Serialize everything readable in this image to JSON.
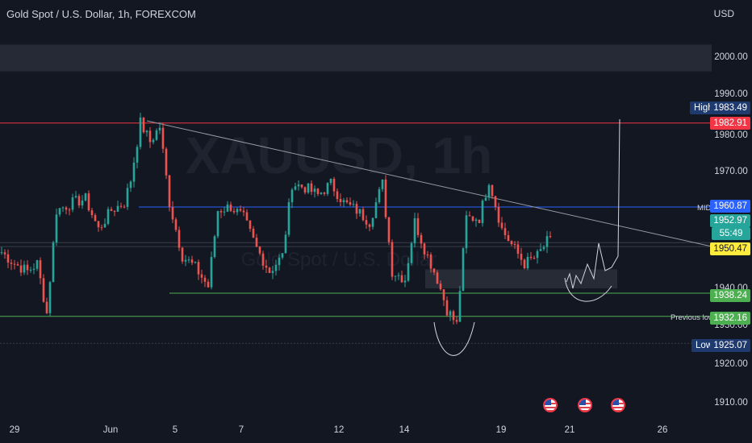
{
  "header": {
    "symbol": "Gold Spot / U.S. Dollar",
    "sep1": " / ",
    "title": "Gold Spot / U.S. Dollar, 1h, FOREXCOM",
    "currency": "USD"
  },
  "watermark": {
    "symbol": "XAUUSD, 1h",
    "subtitle": "Gold Spot / U.S. Dollar"
  },
  "colors": {
    "background": "#131722",
    "bull": "#26a69a",
    "bear": "#ef5350",
    "resistance": "#f23645",
    "mid_line": "#2962ff",
    "support": "#4caf50",
    "trendline": "#9598a1"
  },
  "y_axis": {
    "ticks": [
      "2000.00",
      "1990.00",
      "1980.00",
      "1970.00",
      "1940.00",
      "1930.00",
      "1920.00",
      "1910.00"
    ]
  },
  "x_axis": {
    "ticks": [
      "29",
      "Jun",
      "5",
      "7",
      "12",
      "14",
      "19",
      "21",
      "26"
    ]
  },
  "price_tags": {
    "high_label": "High",
    "high_value": "1983.49",
    "resistance_value": "1982.91",
    "mid_label": "MID",
    "mid_value": "1960.87",
    "current_value": "1952.97",
    "countdown": "55:49",
    "yellow_value": "1950.47",
    "support1_value": "1938.24",
    "prev_low_label": "Previous low",
    "prev_low_value": "1932.16",
    "low_label": "Low",
    "low_value": "1925.07"
  },
  "events": {
    "flag_icon": "us-flag-icon",
    "count": 3
  },
  "chart_data": {
    "type": "candlestick",
    "title": "Gold Spot / U.S. Dollar, 1h, FOREXCOM",
    "ylim": [
      1905,
      2010
    ],
    "x_ticks": [
      "29",
      "Jun",
      "5",
      "7",
      "12",
      "14",
      "19",
      "21",
      "26"
    ],
    "waypoints": [
      [
        0,
        1949
      ],
      [
        4,
        1946
      ],
      [
        8,
        1944
      ],
      [
        11,
        1946
      ],
      [
        14,
        1933
      ],
      [
        17,
        1960
      ],
      [
        22,
        1962
      ],
      [
        26,
        1963
      ],
      [
        30,
        1955
      ],
      [
        34,
        1960
      ],
      [
        38,
        1962
      ],
      [
        40,
        1968
      ],
      [
        43,
        1983
      ],
      [
        46,
        1978
      ],
      [
        49,
        1982
      ],
      [
        52,
        1962
      ],
      [
        56,
        1948
      ],
      [
        60,
        1945
      ],
      [
        64,
        1940
      ],
      [
        67,
        1960
      ],
      [
        71,
        1961
      ],
      [
        75,
        1958
      ],
      [
        79,
        1950
      ],
      [
        83,
        1944
      ],
      [
        87,
        1948
      ],
      [
        90,
        1967
      ],
      [
        94,
        1966
      ],
      [
        98,
        1964
      ],
      [
        102,
        1967
      ],
      [
        106,
        1962
      ],
      [
        110,
        1960
      ],
      [
        114,
        1957
      ],
      [
        118,
        1967
      ],
      [
        121,
        1944
      ],
      [
        125,
        1942
      ],
      [
        128,
        1957
      ],
      [
        131,
        1950
      ],
      [
        135,
        1942
      ],
      [
        138,
        1934
      ],
      [
        141,
        1930
      ],
      [
        144,
        1958
      ],
      [
        148,
        1958
      ],
      [
        151,
        1968
      ],
      [
        155,
        1955
      ],
      [
        158,
        1951
      ],
      [
        162,
        1946
      ],
      [
        166,
        1948
      ],
      [
        170,
        1953
      ]
    ],
    "levels": [
      {
        "name": "High",
        "price": 1983.49
      },
      {
        "name": "resistance",
        "price": 1982.91
      },
      {
        "name": "MID",
        "price": 1960.87
      },
      {
        "name": "current",
        "price": 1952.97
      },
      {
        "name": "yellow",
        "price": 1950.47
      },
      {
        "name": "support",
        "price": 1938.24
      },
      {
        "name": "Previous low",
        "price": 1932.16
      },
      {
        "name": "Low",
        "price": 1925.07
      }
    ],
    "zones": [
      {
        "name": "supply-zone",
        "from": 1996.5,
        "to": 2003.5
      },
      {
        "name": "demand-zone",
        "from": 1939.5,
        "to": 1944.5
      }
    ],
    "trendline": {
      "from": {
        "bar": 45,
        "price": 1983.5
      },
      "to": {
        "bar": 220,
        "price": 1950.5
      }
    },
    "grid": false,
    "legend": "none"
  }
}
